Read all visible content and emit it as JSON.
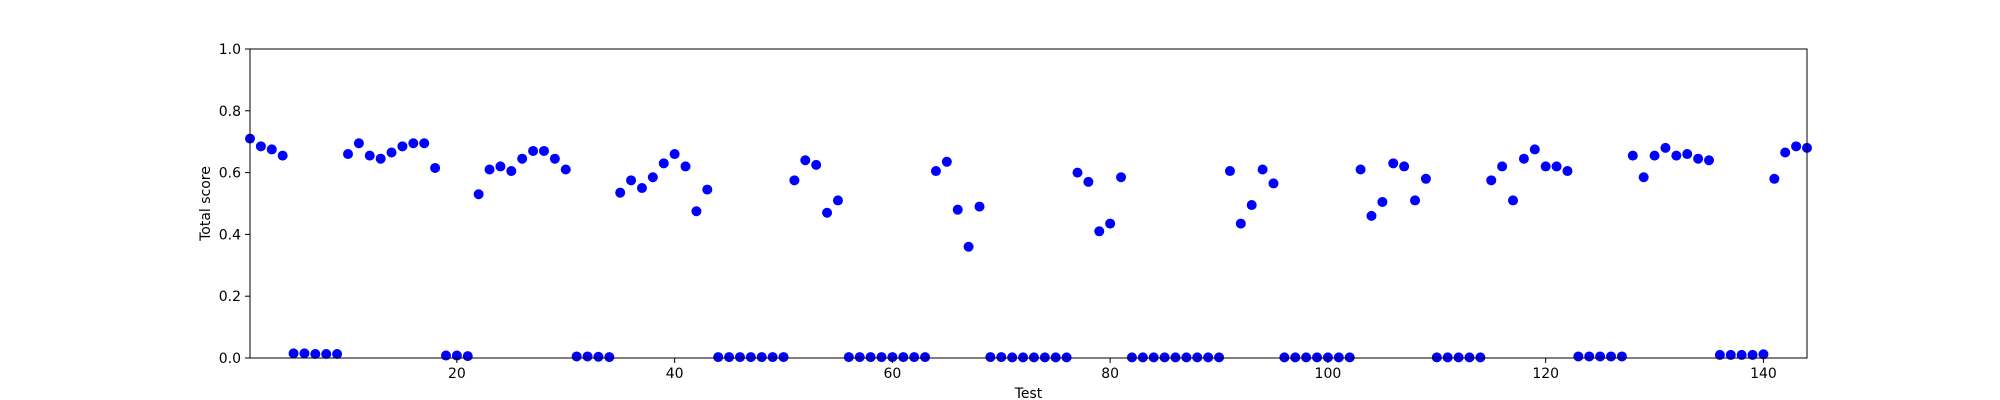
{
  "chart_data": {
    "type": "scatter",
    "xlabel": "Test",
    "ylabel": "Total score",
    "xlim": [
      1,
      144
    ],
    "ylim": [
      0.0,
      1.0
    ],
    "x_ticks": [
      "20",
      "40",
      "60",
      "80",
      "100",
      "120",
      "140"
    ],
    "y_ticks": [
      "0.0",
      "0.2",
      "0.4",
      "0.6",
      "0.8",
      "1.0"
    ],
    "grid": false,
    "marker_color": "#0000ff",
    "series": [
      {
        "x": [
          1,
          2,
          3,
          4,
          5,
          6,
          7,
          8,
          9,
          10,
          11,
          12,
          13,
          14,
          15,
          16,
          17,
          18,
          19,
          20,
          21,
          22,
          23,
          24,
          25,
          26,
          27,
          28,
          29,
          30,
          31,
          32,
          33,
          34,
          35,
          36,
          37,
          38,
          39,
          40,
          41,
          42,
          43,
          44,
          45,
          46,
          47,
          48,
          49,
          50,
          51,
          52,
          53,
          54,
          55,
          56,
          57,
          58,
          59,
          60,
          61,
          62,
          63,
          64,
          65,
          66,
          67,
          68,
          69,
          70,
          71,
          72,
          73,
          74,
          75,
          76,
          77,
          78,
          79,
          80,
          81,
          82,
          83,
          84,
          85,
          86,
          87,
          88,
          89,
          90,
          91,
          92,
          93,
          94,
          95,
          96,
          97,
          98,
          99,
          100,
          101,
          102,
          103,
          104,
          105,
          106,
          107,
          108,
          109,
          110,
          111,
          112,
          113,
          114,
          115,
          116,
          117,
          118,
          119,
          120,
          121,
          122,
          123,
          124,
          125,
          126,
          127,
          128,
          129,
          130,
          131,
          132,
          133,
          134,
          135,
          136,
          137,
          138,
          139,
          140,
          141,
          142,
          143,
          144
        ],
        "y": [
          0.71,
          0.685,
          0.675,
          0.655,
          0.015,
          0.015,
          0.013,
          0.013,
          0.013,
          0.66,
          0.695,
          0.655,
          0.645,
          0.665,
          0.685,
          0.695,
          0.695,
          0.615,
          0.008,
          0.008,
          0.006,
          0.53,
          0.61,
          0.62,
          0.605,
          0.645,
          0.67,
          0.67,
          0.645,
          0.61,
          0.005,
          0.005,
          0.004,
          0.003,
          0.535,
          0.575,
          0.55,
          0.585,
          0.63,
          0.66,
          0.62,
          0.475,
          0.545,
          0.003,
          0.003,
          0.003,
          0.003,
          0.003,
          0.003,
          0.003,
          0.575,
          0.64,
          0.625,
          0.47,
          0.51,
          0.003,
          0.003,
          0.003,
          0.003,
          0.003,
          0.003,
          0.003,
          0.003,
          0.605,
          0.635,
          0.48,
          0.36,
          0.49,
          0.003,
          0.003,
          0.002,
          0.002,
          0.002,
          0.002,
          0.002,
          0.002,
          0.6,
          0.57,
          0.41,
          0.435,
          0.585,
          0.002,
          0.002,
          0.002,
          0.002,
          0.002,
          0.002,
          0.002,
          0.002,
          0.002,
          0.605,
          0.435,
          0.495,
          0.61,
          0.565,
          0.002,
          0.002,
          0.002,
          0.002,
          0.002,
          0.002,
          0.002,
          0.61,
          0.46,
          0.505,
          0.63,
          0.62,
          0.51,
          0.58,
          0.002,
          0.002,
          0.002,
          0.002,
          0.002,
          0.575,
          0.62,
          0.51,
          0.645,
          0.675,
          0.62,
          0.62,
          0.605,
          0.005,
          0.005,
          0.005,
          0.005,
          0.005,
          0.655,
          0.585,
          0.655,
          0.68,
          0.655,
          0.66,
          0.645,
          0.64,
          0.01,
          0.01,
          0.01,
          0.01,
          0.012,
          0.58,
          0.665,
          0.685,
          0.68
        ]
      }
    ]
  }
}
